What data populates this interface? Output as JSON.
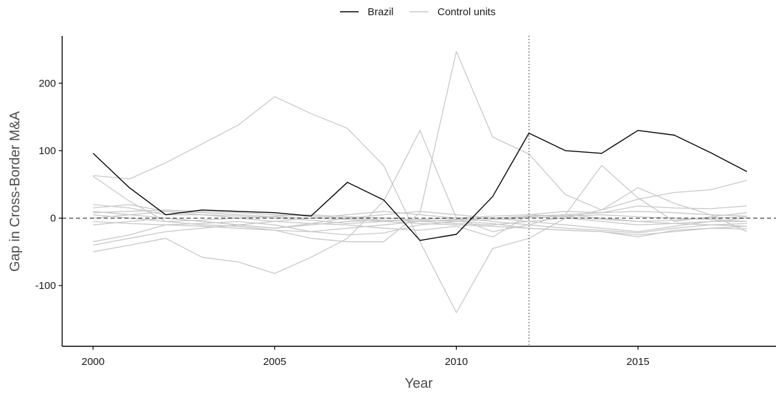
{
  "chart_data": {
    "type": "line",
    "title": "",
    "xlabel": "Year",
    "ylabel": "Gap in Cross-Border M&A",
    "xlim": [
      1999.15,
      2018.8
    ],
    "ylim": [
      -190,
      270
    ],
    "x_ticks": [
      2000,
      2005,
      2010,
      2015
    ],
    "y_ticks": [
      -100,
      0,
      100,
      200
    ],
    "legend": {
      "position": "top",
      "entries": [
        "Brazil",
        "Control units"
      ]
    },
    "colors": {
      "treated": "#000000",
      "control": "#c8c8c8",
      "reference": "#333333"
    },
    "reference_lines": {
      "zero_line": 0,
      "treatment_year": 2012
    },
    "grid": false,
    "x": [
      2000,
      2001,
      2002,
      2003,
      2004,
      2005,
      2006,
      2007,
      2008,
      2009,
      2010,
      2011,
      2012,
      2013,
      2014,
      2015,
      2016,
      2017,
      2018
    ],
    "series": [
      {
        "name": "Brazil",
        "role": "treated",
        "values": [
          96,
          45,
          5,
          12,
          10,
          8,
          3,
          53,
          27,
          -33,
          -24,
          32,
          126,
          100,
          96,
          130,
          123,
          97,
          69
        ]
      },
      {
        "role": "control",
        "values": [
          63,
          58,
          82,
          110,
          138,
          180,
          155,
          133,
          78,
          -35,
          -140,
          -45,
          -30,
          0,
          12,
          28,
          38,
          42,
          56
        ]
      },
      {
        "role": "control",
        "values": [
          62,
          25,
          -5,
          -10,
          -12,
          -18,
          -30,
          -35,
          -35,
          8,
          247,
          120,
          95,
          35,
          12,
          45,
          22,
          5,
          -20
        ]
      },
      {
        "role": "control",
        "values": [
          -50,
          -40,
          -30,
          -58,
          -65,
          -82,
          -58,
          -30,
          25,
          130,
          0,
          -20,
          -10,
          5,
          78,
          30,
          -5,
          2,
          8
        ]
      },
      {
        "role": "control",
        "values": [
          20,
          15,
          5,
          5,
          0,
          -5,
          -8,
          -10,
          -15,
          -18,
          -12,
          -28,
          5,
          10,
          8,
          18,
          15,
          14,
          18
        ]
      },
      {
        "role": "control",
        "values": [
          -35,
          -25,
          -10,
          -8,
          -5,
          -10,
          -20,
          -25,
          -22,
          -10,
          -5,
          -8,
          -15,
          -18,
          -20,
          -28,
          -18,
          -15,
          -16
        ]
      },
      {
        "role": "control",
        "values": [
          10,
          5,
          0,
          -5,
          -10,
          -15,
          -8,
          0,
          5,
          10,
          5,
          0,
          -5,
          -10,
          -15,
          -20,
          -12,
          -5,
          0
        ]
      },
      {
        "role": "control",
        "values": [
          15,
          20,
          10,
          5,
          3,
          0,
          -3,
          -8,
          -5,
          -2,
          0,
          3,
          5,
          2,
          -2,
          -5,
          -3,
          0,
          2
        ]
      },
      {
        "role": "control",
        "values": [
          -5,
          -8,
          -10,
          -12,
          -15,
          -18,
          -20,
          -15,
          -10,
          -5,
          -2,
          0,
          2,
          5,
          0,
          -5,
          -8,
          -10,
          -12
        ]
      },
      {
        "role": "control",
        "values": [
          5,
          0,
          -5,
          -3,
          0,
          3,
          5,
          2,
          0,
          -3,
          -5,
          -2,
          0,
          3,
          5,
          2,
          0,
          -2,
          -5
        ]
      },
      {
        "role": "control",
        "values": [
          -40,
          -30,
          -20,
          -15,
          -10,
          -5,
          0,
          5,
          10,
          5,
          0,
          -5,
          -10,
          -15,
          -18,
          -22,
          -15,
          -10,
          -8
        ]
      },
      {
        "role": "control",
        "values": [
          0,
          5,
          10,
          8,
          5,
          2,
          0,
          -2,
          -5,
          -8,
          -10,
          -12,
          -15,
          -18,
          -20,
          -25,
          -20,
          -15,
          -12
        ]
      },
      {
        "role": "control",
        "values": [
          8,
          10,
          12,
          10,
          8,
          5,
          3,
          0,
          -3,
          -5,
          -3,
          0,
          3,
          5,
          8,
          10,
          8,
          5,
          3
        ]
      },
      {
        "role": "control",
        "values": [
          -10,
          -5,
          0,
          -5,
          -10,
          -15,
          -10,
          -5,
          -3,
          -5,
          -8,
          -10,
          -5,
          0,
          -5,
          -10,
          -8,
          -5,
          -5
        ]
      }
    ]
  }
}
